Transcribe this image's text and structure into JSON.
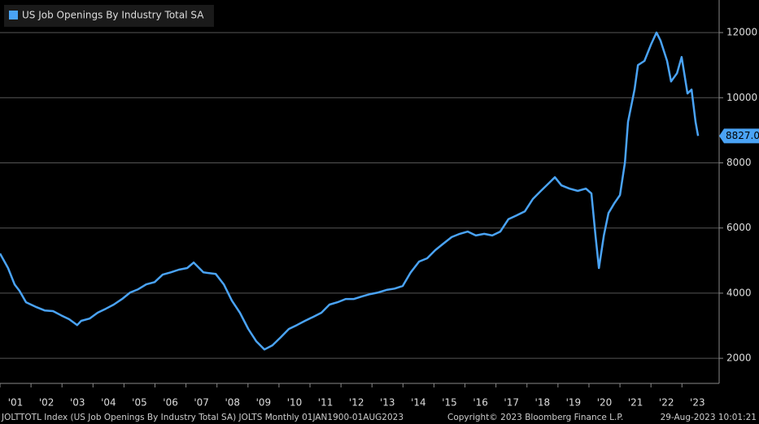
{
  "chart_data": {
    "type": "line",
    "legend": "US Job Openings By Industry Total SA",
    "footer_left": "JOLTTOTL Index (US Job Openings By Industry Total SA) JOLTS  Monthly 01JAN1900-01AUG2023",
    "footer_center": "Copyright© 2023 Bloomberg Finance L.P.",
    "footer_right": "29-Aug-2023 10:01:21",
    "color": "#4aa3f5",
    "grid": true,
    "xlim": [
      2001,
      2024.2
    ],
    "ylim": [
      1230,
      13000
    ],
    "yticks": [
      2000,
      4000,
      6000,
      8000,
      10000,
      12000
    ],
    "xticks": [
      {
        "value": 2001,
        "label": "'01"
      },
      {
        "value": 2002,
        "label": "'02"
      },
      {
        "value": 2003,
        "label": "'03"
      },
      {
        "value": 2004,
        "label": "'04"
      },
      {
        "value": 2005,
        "label": "'05"
      },
      {
        "value": 2006,
        "label": "'06"
      },
      {
        "value": 2007,
        "label": "'07"
      },
      {
        "value": 2008,
        "label": "'08"
      },
      {
        "value": 2009,
        "label": "'09"
      },
      {
        "value": 2010,
        "label": "'10"
      },
      {
        "value": 2011,
        "label": "'11"
      },
      {
        "value": 2012,
        "label": "'12"
      },
      {
        "value": 2013,
        "label": "'13"
      },
      {
        "value": 2014,
        "label": "'14"
      },
      {
        "value": 2015,
        "label": "'15"
      },
      {
        "value": 2016,
        "label": "'16"
      },
      {
        "value": 2017,
        "label": "'17"
      },
      {
        "value": 2018,
        "label": "'18"
      },
      {
        "value": 2019,
        "label": "'19"
      },
      {
        "value": 2020,
        "label": "'20"
      },
      {
        "value": 2021,
        "label": "'21"
      },
      {
        "value": 2022,
        "label": "'22"
      },
      {
        "value": 2023,
        "label": "'23"
      }
    ],
    "x": [
      2001.0,
      2001.26,
      2001.47,
      2001.63,
      2001.84,
      2002.18,
      2002.44,
      2002.71,
      2002.97,
      2003.23,
      2003.49,
      2003.62,
      2003.89,
      2004.15,
      2004.41,
      2004.67,
      2004.94,
      2005.2,
      2005.46,
      2005.72,
      2005.99,
      2006.25,
      2006.51,
      2006.77,
      2007.04,
      2007.25,
      2007.56,
      2007.96,
      2008.22,
      2008.48,
      2008.74,
      2009.01,
      2009.27,
      2009.53,
      2009.79,
      2010.06,
      2010.32,
      2010.58,
      2010.84,
      2011.1,
      2011.37,
      2011.63,
      2011.89,
      2012.15,
      2012.42,
      2012.68,
      2012.94,
      2013.2,
      2013.47,
      2013.73,
      2013.99,
      2014.25,
      2014.52,
      2014.78,
      2015.04,
      2015.3,
      2015.57,
      2015.83,
      2016.09,
      2016.35,
      2016.62,
      2016.88,
      2017.14,
      2017.4,
      2017.67,
      2017.93,
      2018.19,
      2018.45,
      2018.72,
      2018.9,
      2019.11,
      2019.37,
      2019.64,
      2019.9,
      2020.08,
      2020.21,
      2020.32,
      2020.48,
      2020.63,
      2020.82,
      2021.0,
      2021.16,
      2021.26,
      2021.47,
      2021.58,
      2021.79,
      2022.0,
      2022.18,
      2022.31,
      2022.52,
      2022.65,
      2022.84,
      2022.99,
      2023.18,
      2023.31,
      2023.44,
      2023.52
    ],
    "values": [
      5217,
      4770,
      4270,
      4070,
      3720,
      3570,
      3470,
      3450,
      3320,
      3200,
      3020,
      3150,
      3220,
      3400,
      3520,
      3650,
      3820,
      4020,
      4120,
      4270,
      4340,
      4570,
      4640,
      4720,
      4770,
      4940,
      4640,
      4590,
      4270,
      3770,
      3400,
      2900,
      2520,
      2270,
      2400,
      2650,
      2900,
      3020,
      3150,
      3270,
      3400,
      3650,
      3720,
      3820,
      3820,
      3900,
      3970,
      4020,
      4100,
      4140,
      4220,
      4640,
      4970,
      5070,
      5320,
      5520,
      5720,
      5820,
      5890,
      5770,
      5820,
      5770,
      5890,
      6270,
      6390,
      6510,
      6890,
      7140,
      7390,
      7560,
      7310,
      7210,
      7140,
      7210,
      7060,
      5770,
      4770,
      5770,
      6460,
      6760,
      7010,
      8010,
      9260,
      10250,
      11000,
      11130,
      11630,
      12000,
      11750,
      11130,
      10500,
      10750,
      11250,
      10130,
      10250,
      9260,
      8827
    ],
    "value_labels": [
      null,
      null,
      null,
      null,
      null,
      null,
      null,
      null,
      null,
      null,
      null,
      null,
      null,
      null,
      null,
      null,
      null,
      null,
      null,
      null,
      null,
      null,
      null,
      null,
      null,
      null,
      null,
      null,
      null,
      null,
      null,
      null,
      null,
      null,
      null,
      null,
      null,
      null,
      null,
      null,
      null,
      null,
      null,
      null,
      null,
      null,
      null,
      null,
      null,
      null,
      null,
      null,
      null,
      null,
      null,
      null,
      null,
      null,
      null,
      null,
      null,
      null,
      null,
      null,
      null,
      null,
      null,
      null,
      null,
      null,
      null,
      null,
      null,
      null,
      null,
      null,
      null,
      null,
      null,
      null,
      null,
      null,
      null,
      null,
      null,
      null,
      null,
      null,
      null,
      null,
      null,
      null,
      null,
      null,
      null,
      null,
      "8827.0"
    ]
  }
}
